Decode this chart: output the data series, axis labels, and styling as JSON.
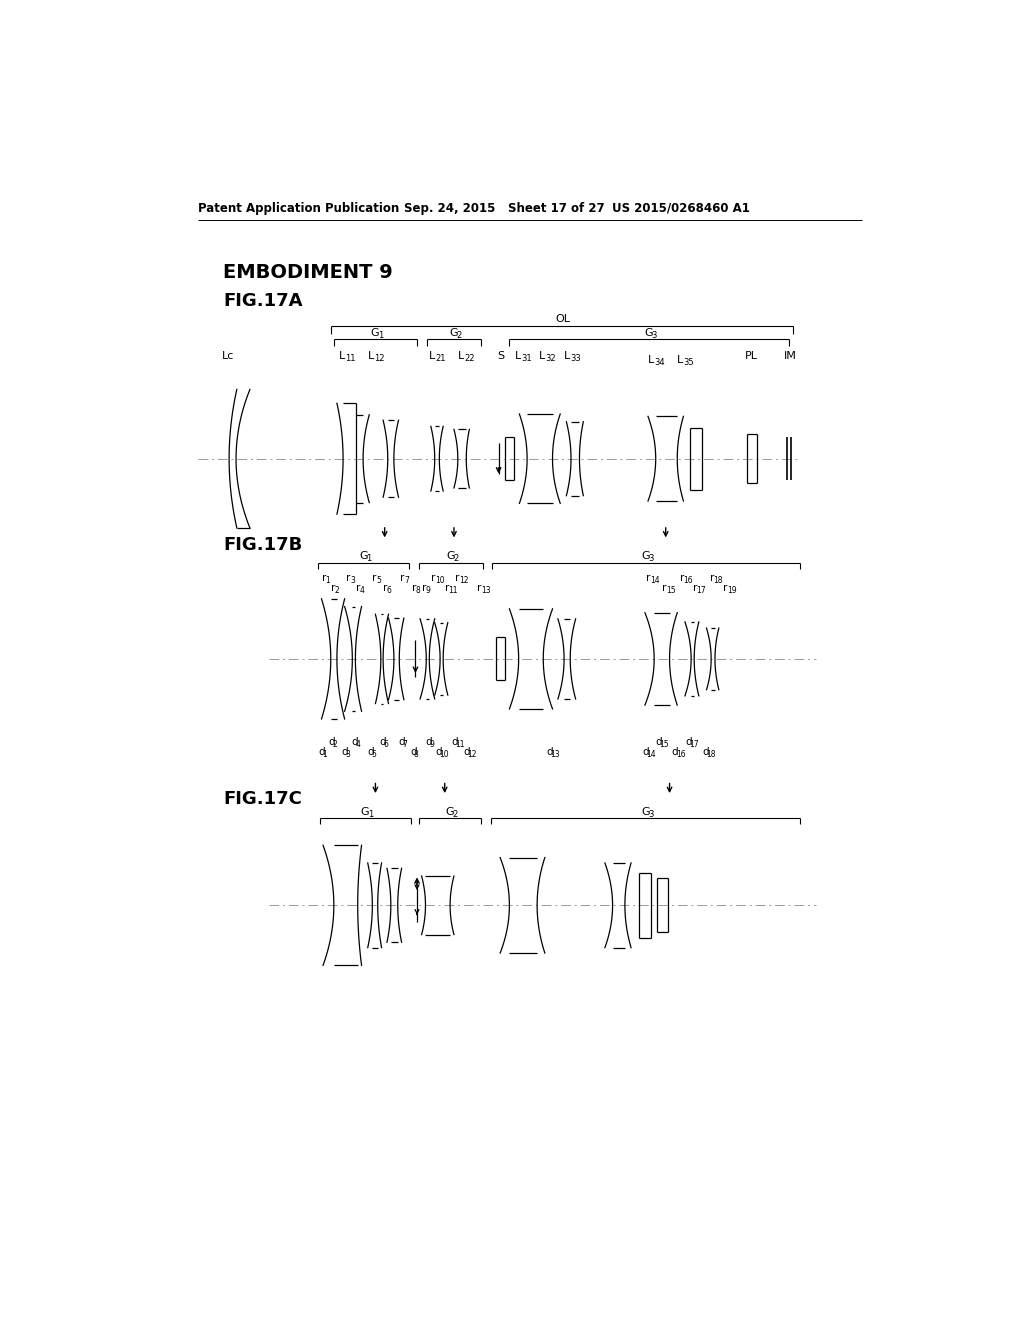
{
  "bg_color": "#ffffff",
  "header_text": "Patent Application Publication",
  "header_date": "Sep. 24, 2015",
  "header_sheet": "Sheet 17 of 27",
  "header_patent": "US 2015/0268460 A1",
  "title1": "EMBODIMENT 9",
  "title2": "FIG.17A",
  "title3": "FIG.17B",
  "title4": "FIG.17C"
}
